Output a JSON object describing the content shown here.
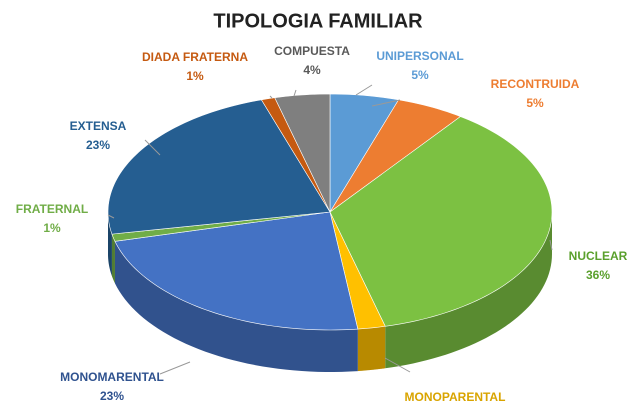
{
  "chart_data": {
    "type": "pie",
    "title": "TIPOLOGIA FAMILIAR",
    "categories": [
      "UNIPERSONAL",
      "RECONTRUIDA",
      "NUCLEAR",
      "MONOPARENTAL",
      "MONOMARENTAL",
      "FRATERNAL",
      "EXTENSA",
      "DIADA FRATERNA",
      "COMPUESTA"
    ],
    "values": [
      5,
      5,
      36,
      2,
      23,
      1,
      23,
      1,
      4
    ],
    "value_labels": [
      "5%",
      "5%",
      "36%",
      null,
      "23%",
      "1%",
      "23%",
      "1%",
      "4%"
    ],
    "colors": [
      "#5b9bd5",
      "#ed7d31",
      "#7cc142",
      "#ffc000",
      "#4472c4",
      "#70ad47",
      "#255e91",
      "#c55a11",
      "#7f7f7f"
    ],
    "label_colors": [
      "#5b9bd5",
      "#ed7d31",
      "#5aa02c",
      "#d9a400",
      "#2f528f",
      "#70ad47",
      "#255e91",
      "#c55a11",
      "#595959"
    ]
  }
}
